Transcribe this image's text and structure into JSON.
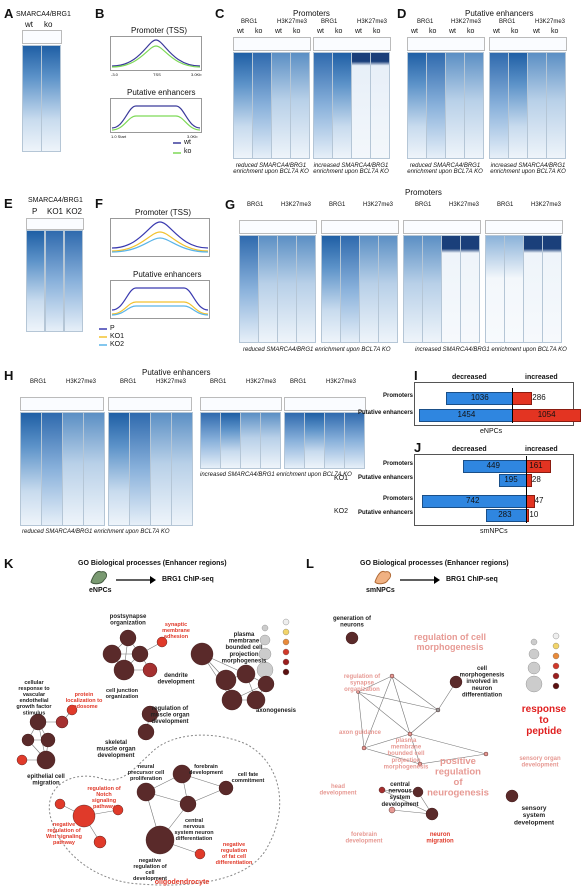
{
  "panels": {
    "A": {
      "label": "A",
      "title": "SMARCA4/BRG1",
      "cols": [
        "wt",
        "ko"
      ]
    },
    "B": {
      "label": "B",
      "title1": "Promoter (TSS)",
      "title2": "Putative enhancers",
      "legend": [
        "wt",
        "ko"
      ],
      "ticks1": [
        "-3.0",
        "TSS",
        "3.0Kb"
      ],
      "ticks2": [
        "1.0 Start",
        "End",
        "3.0Kb"
      ],
      "colors": {
        "wt": "#3a3a9a",
        "ko": "#7ed957"
      }
    },
    "C": {
      "label": "C",
      "title": "Promoters",
      "groups": [
        "BRG1",
        "H3K27me3",
        "BRG1",
        "H3K27me3"
      ],
      "cols": [
        "wt",
        "ko",
        "wt",
        "ko"
      ],
      "cap1": "reduced SMARCA4/BRG1 enrichment upon BCL7A KO",
      "cap2": "increased SMARCA4/BRG1 enrichment upon BCL7A KO"
    },
    "D": {
      "label": "D",
      "title": "Putative enhancers",
      "groups": [
        "BRG1",
        "H3K27me3",
        "BRG1",
        "H3K27me3"
      ],
      "cols": [
        "wt",
        "ko",
        "wt",
        "ko"
      ],
      "cap1": "reduced SMARCA4/BRG1 enrichment upon BCL7A KO",
      "cap2": "increased SMARCA4/BRG1 enrichment upon BCL7A KO"
    },
    "E": {
      "label": "E",
      "title": "SMARCA4/BRG1",
      "cols": [
        "P",
        "KO1",
        "KO2"
      ]
    },
    "F": {
      "label": "F",
      "title1": "Promoter (TSS)",
      "title2": "Putative enhancers",
      "legend": [
        "P",
        "KO1",
        "KO2"
      ],
      "colors": {
        "P": "#3a3ab0",
        "KO1": "#f2c230",
        "KO2": "#5ab4e8"
      }
    },
    "G": {
      "label": "G",
      "title": "Promoters",
      "groups": [
        "BRG1",
        "H3K27me3",
        "BRG1",
        "H3K27me3",
        "BRG1",
        "H3K27me3",
        "BRG1",
        "H3K27me3"
      ],
      "cap1": "reduced SMARCA4/BRG1 enrichment upon BCL7A KO",
      "cap2": "increased SMARCA4/BRG1 enrichment upon BCL7A KO"
    },
    "H": {
      "label": "H",
      "title": "Putative enhancers",
      "groups": [
        "BRG1",
        "H3K27me3",
        "BRG1",
        "H3K27me3",
        "BRG1",
        "H3K27me3",
        "BRG1",
        "H3K27me3"
      ],
      "cap1": "reduced SMARCA4/BRG1 enrichment upon BCL7A KO",
      "cap2": "increased SMARCA4/BRG1 enrichment upon BCL7A KO"
    },
    "I": {
      "label": "I",
      "decreased": "decreased",
      "increased": "increased",
      "footer": "eNPCs"
    },
    "J": {
      "label": "J",
      "decreased": "decreased",
      "increased": "increased",
      "footer": "smNPCs",
      "ko1": "KO1",
      "ko2": "KO2"
    },
    "K": {
      "label": "K",
      "title": "GO Biological processes (Enhancer regions)",
      "cell": "eNPCs",
      "arrow": "BRG1 ChIP-seq"
    },
    "L": {
      "label": "L",
      "title": "GO Biological processes (Enhancer regions)",
      "cell": "smNPCs",
      "arrow": "BRG1 ChIP-seq"
    }
  },
  "chart_data": [
    {
      "type": "bar",
      "panel": "I",
      "categories": [
        "Promoters",
        "Putative enhancers"
      ],
      "series": [
        {
          "name": "decreased",
          "values": [
            1036,
            1454
          ]
        },
        {
          "name": "increased",
          "values": [
            286,
            1054
          ]
        }
      ]
    },
    {
      "type": "bar",
      "panel": "J",
      "categories": [
        "Promoters",
        "Putative enhancers",
        "Promoters",
        "Putative enhancers"
      ],
      "groups": [
        "KO1",
        "KO1",
        "KO2",
        "KO2"
      ],
      "series": [
        {
          "name": "decreased",
          "values": [
            449,
            195,
            742,
            283
          ]
        },
        {
          "name": "increased",
          "values": [
            161,
            28,
            47,
            10
          ]
        }
      ]
    }
  ],
  "network_K": [
    "postsynapse organization",
    "synaptic membrane adhesion",
    "dendrite development",
    "plasma membrane bounded cell projection morphogenesis",
    "axonogenesis",
    "cellular response to vascular endothelial growth factor stimulus",
    "protein localization to endosome",
    "cell junction organization",
    "regulation of muscle organ development",
    "skeletal muscle organ development",
    "epithelial cell migration",
    "forebrain development",
    "neural precursor cell proliferation",
    "cell fate commitment",
    "central nervous system neuron differentiation",
    "regulation of Notch signaling pathway",
    "negative regulation of Wnt signaling pathway",
    "negative regulation of cell development",
    "negative regulation of fat cell differentiation",
    "oligodendrocyte differentiation"
  ],
  "network_L": [
    "generation of neurons",
    "regulation of cell morphogenesis",
    "regulation of synapse organization",
    "cell morphogenesis involved in neuron differentiation",
    "axon guidance",
    "plasma membrane bounded cell projection morphogenesis",
    "response to peptide",
    "positive regulation of neurogenesis",
    "sensory organ development",
    "head development",
    "central nervous system development",
    "sensory system development",
    "neuron migration",
    "forebrain development"
  ]
}
